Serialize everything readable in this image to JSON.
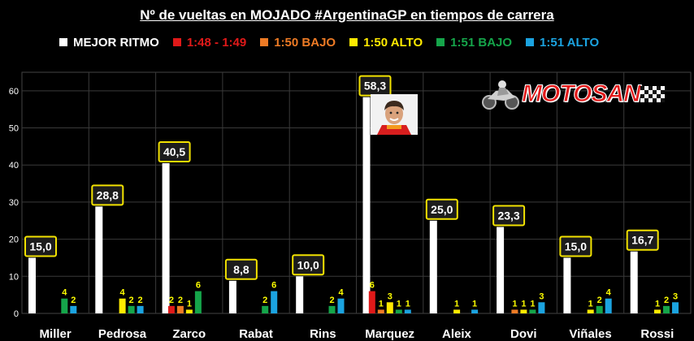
{
  "title": "Nº de vueltas en MOJADO #ArgentinaGP en tiempos de carrera",
  "logo_text": "MOTOSAN",
  "colors": {
    "background": "#000000",
    "gridline": "#3a3a3a",
    "label_yellow": "#ffff00",
    "callout_fill": "#1c1c1c",
    "callout_border": "#f2e200"
  },
  "chart_data": {
    "type": "bar",
    "title": "Nº de vueltas en MOJADO #ArgentinaGP en tiempos de carrera",
    "categories": [
      "Miller",
      "Pedrosa",
      "Zarco",
      "Rabat",
      "Rins",
      "Marquez",
      "Aleix",
      "Dovi",
      "Viñales",
      "Rossi"
    ],
    "ylim": [
      0,
      65
    ],
    "yticks": [
      0,
      10,
      20,
      30,
      40,
      50,
      60
    ],
    "grid": true,
    "legend_position": "top",
    "series": [
      {
        "name": "MEJOR RITMO",
        "color": "#ffffff",
        "values": [
          15.0,
          28.8,
          40.5,
          8.8,
          10.0,
          58.3,
          25.0,
          23.3,
          15.0,
          16.7
        ],
        "labels": [
          "15,0",
          "28,8",
          "40,5",
          "8,8",
          "10,0",
          "58,3",
          "25,0",
          "23,3",
          "15,0",
          "16,7"
        ]
      },
      {
        "name": "1:48 - 1:49",
        "color": "#e01919",
        "values": [
          0,
          0,
          2,
          0,
          0,
          6,
          0,
          0,
          0,
          0
        ]
      },
      {
        "name": "1:50 BAJO",
        "color": "#ee7b25",
        "values": [
          0,
          0,
          2,
          0,
          0,
          1,
          0,
          1,
          0,
          0
        ]
      },
      {
        "name": "1:50 ALTO",
        "color": "#ffea00",
        "values": [
          0,
          4,
          1,
          0,
          0,
          3,
          1,
          1,
          1,
          1
        ]
      },
      {
        "name": "1:51 BAJO",
        "color": "#15a54a",
        "values": [
          4,
          2,
          6,
          2,
          2,
          1,
          0,
          1,
          2,
          2
        ]
      },
      {
        "name": "1:51 ALTO",
        "color": "#1ba3e0",
        "values": [
          2,
          2,
          0,
          6,
          4,
          1,
          1,
          3,
          4,
          3
        ]
      }
    ]
  }
}
